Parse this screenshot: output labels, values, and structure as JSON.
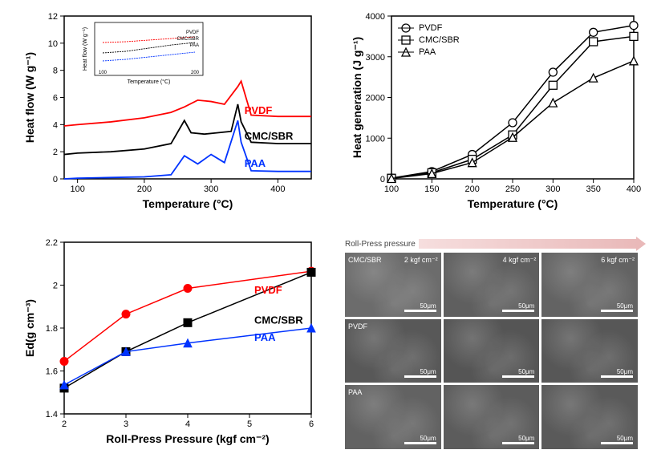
{
  "panel_a": {
    "type": "line",
    "xlabel": "Temperature (°C)",
    "ylabel": "Heat flow (W g⁻¹)",
    "xlim": [
      80,
      450
    ],
    "ylim": [
      0,
      12
    ],
    "xticks": [
      100,
      200,
      300,
      400
    ],
    "yticks": [
      0,
      2,
      4,
      6,
      8,
      10,
      12
    ],
    "label_fontsize": 14,
    "tick_fontsize": 11,
    "series": [
      {
        "name": "PVDF",
        "label": "PVDF",
        "color": "#ff0000",
        "x": [
          80,
          100,
          150,
          200,
          240,
          260,
          280,
          300,
          320,
          340,
          345,
          360,
          400,
          450
        ],
        "y": [
          3.9,
          4.0,
          4.2,
          4.5,
          4.9,
          5.3,
          5.8,
          5.7,
          5.5,
          6.8,
          7.2,
          4.7,
          4.6,
          4.6
        ]
      },
      {
        "name": "CMCSBR",
        "label": "CMC/SBR",
        "color": "#000000",
        "x": [
          80,
          100,
          150,
          200,
          240,
          260,
          270,
          290,
          310,
          330,
          340,
          345,
          360,
          400,
          450
        ],
        "y": [
          1.8,
          1.9,
          2.0,
          2.2,
          2.6,
          4.3,
          3.4,
          3.3,
          3.4,
          3.5,
          5.5,
          4.2,
          2.7,
          2.6,
          2.6
        ]
      },
      {
        "name": "PAA",
        "label": "PAA",
        "color": "#0033ff",
        "x": [
          80,
          100,
          150,
          200,
          240,
          260,
          280,
          300,
          320,
          340,
          345,
          360,
          400,
          450
        ],
        "y": [
          0.0,
          0.05,
          0.1,
          0.15,
          0.3,
          1.7,
          1.1,
          1.8,
          1.2,
          4.3,
          2.7,
          0.6,
          0.55,
          0.55
        ]
      }
    ],
    "inset": {
      "xlabel": "Temperature (°C)",
      "ylabel": "Heat flow (W g⁻¹)",
      "xlim": [
        100,
        200
      ],
      "ylim": [
        0,
        2
      ]
    }
  },
  "panel_b": {
    "type": "line-marker",
    "xlabel": "Temperature (°C)",
    "ylabel": "Heat generation (J g⁻¹)",
    "xlim": [
      100,
      400
    ],
    "ylim": [
      0,
      4000
    ],
    "xticks": [
      100,
      150,
      200,
      250,
      300,
      350,
      400
    ],
    "yticks": [
      0,
      1000,
      2000,
      3000,
      4000
    ],
    "label_fontsize": 14,
    "tick_fontsize": 11,
    "legend_pos": "top-left",
    "series": [
      {
        "name": "PVDF",
        "label": "PVDF",
        "marker": "circle",
        "color": "#000000",
        "x": [
          100,
          150,
          200,
          250,
          300,
          350,
          400
        ],
        "y": [
          20,
          180,
          600,
          1380,
          2620,
          3600,
          3770
        ]
      },
      {
        "name": "CMCSBR",
        "label": "CMC/SBR",
        "marker": "square",
        "color": "#000000",
        "x": [
          100,
          150,
          200,
          250,
          300,
          350,
          400
        ],
        "y": [
          15,
          150,
          480,
          1080,
          2300,
          3370,
          3500
        ]
      },
      {
        "name": "PAA",
        "label": "PAA",
        "marker": "triangle",
        "color": "#000000",
        "x": [
          100,
          150,
          200,
          250,
          300,
          350,
          400
        ],
        "y": [
          10,
          130,
          400,
          1020,
          1870,
          2480,
          2900
        ]
      }
    ]
  },
  "panel_c": {
    "type": "line-marker",
    "xlabel": "Roll-Press Pressure (kgf cm⁻²)",
    "ylabel": "Ed(g cm⁻³)",
    "xlim": [
      2,
      6
    ],
    "ylim": [
      1.4,
      2.2
    ],
    "xticks": [
      2,
      3,
      4,
      5,
      6
    ],
    "yticks": [
      1.4,
      1.6,
      1.8,
      2.0,
      2.2
    ],
    "label_fontsize": 14,
    "tick_fontsize": 11,
    "series": [
      {
        "name": "PVDF",
        "label": "PVDF",
        "marker": "circle-filled",
        "color": "#ff0000",
        "label_color": "#ff0000",
        "x": [
          2,
          3,
          4,
          6
        ],
        "y": [
          1.645,
          1.865,
          1.985,
          2.065
        ]
      },
      {
        "name": "CMCSBR",
        "label": "CMC/SBR",
        "marker": "square-filled",
        "color": "#000000",
        "label_color": "#000000",
        "x": [
          2,
          3,
          4,
          6
        ],
        "y": [
          1.52,
          1.69,
          1.825,
          2.06
        ]
      },
      {
        "name": "PAA",
        "label": "PAA",
        "marker": "triangle-filled",
        "color": "#0033ff",
        "label_color": "#0033ff",
        "x": [
          2,
          3,
          4,
          6
        ],
        "y": [
          1.535,
          1.69,
          1.73,
          1.8
        ]
      }
    ]
  },
  "panel_d": {
    "type": "image-grid",
    "header": "Roll-Press pressure",
    "col_labels": [
      "2 kgf cm⁻²",
      "4 kgf cm⁻²",
      "6 kgf cm⁻²"
    ],
    "row_labels": [
      "CMC/SBR",
      "PVDF",
      "PAA"
    ],
    "scale_label": "50μm",
    "bg_colors": [
      [
        "#6c6c6c",
        "#5f5f5f",
        "#636363"
      ],
      [
        "#585858",
        "#555555",
        "#575757"
      ],
      [
        "#626262",
        "#5c5c5c",
        "#5a5a5a"
      ]
    ]
  }
}
